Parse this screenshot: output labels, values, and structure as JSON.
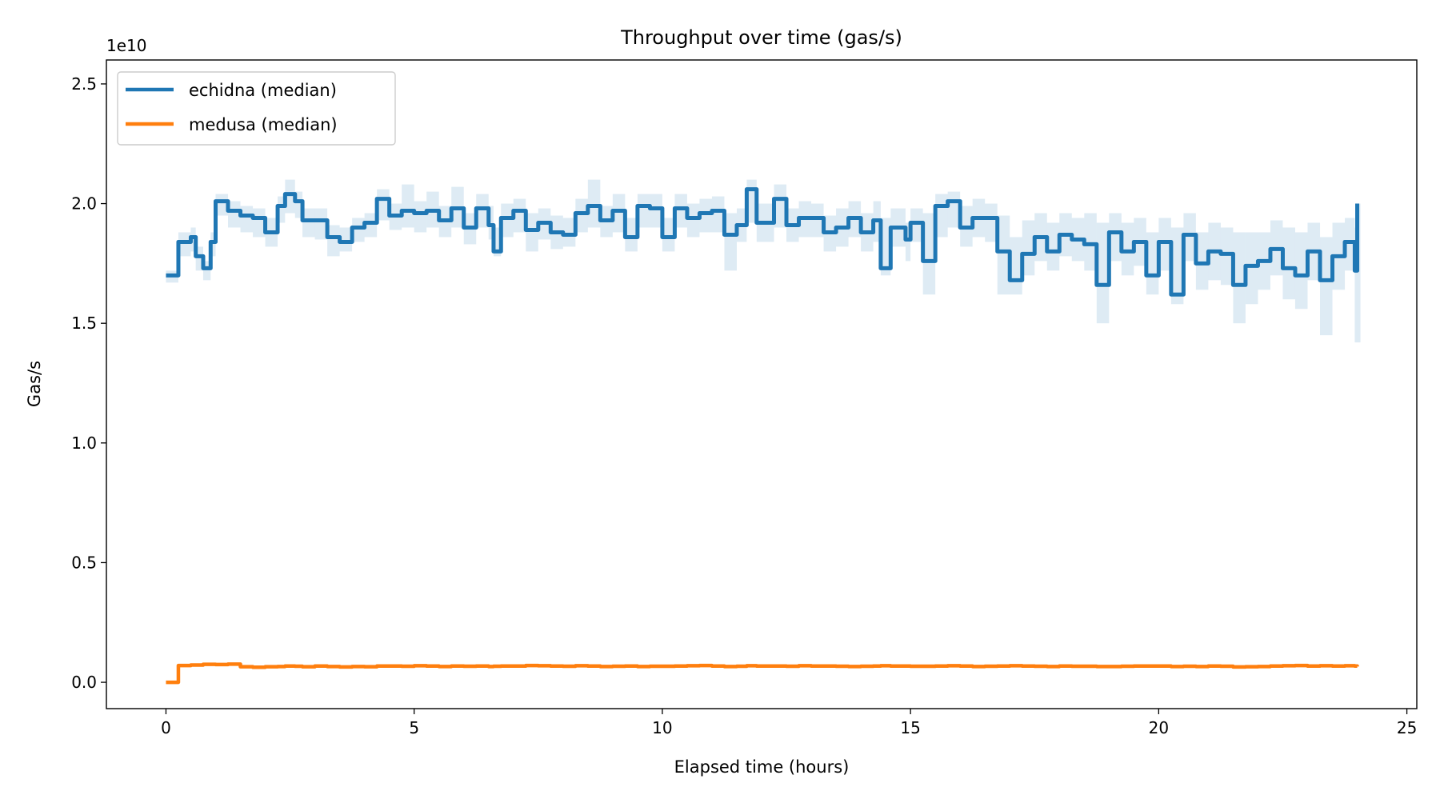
{
  "chart_data": {
    "type": "line",
    "title": "Throughput over time (gas/s)",
    "xlabel": "Elapsed time (hours)",
    "ylabel": "Gas/s",
    "y_offset_label": "1e10",
    "xlim": [
      -1.2,
      25.2
    ],
    "ylim": [
      -0.11,
      2.6
    ],
    "xticks": [
      0,
      5,
      10,
      15,
      20,
      25
    ],
    "xtick_labels": [
      "0",
      "5",
      "10",
      "15",
      "20",
      "25"
    ],
    "yticks": [
      0.0,
      0.5,
      1.0,
      1.5,
      2.0,
      2.5
    ],
    "ytick_labels": [
      "0.0",
      "0.5",
      "1.0",
      "1.5",
      "2.0",
      "2.5"
    ],
    "grid": false,
    "legend_position": "top-left",
    "x": [
      0,
      0.25,
      0.5,
      0.6,
      0.75,
      0.9,
      1.0,
      1.25,
      1.5,
      1.75,
      2.0,
      2.25,
      2.4,
      2.6,
      2.75,
      3.0,
      3.25,
      3.5,
      3.75,
      4.0,
      4.25,
      4.5,
      4.75,
      5.0,
      5.25,
      5.5,
      5.75,
      6.0,
      6.25,
      6.5,
      6.6,
      6.75,
      7.0,
      7.25,
      7.5,
      7.75,
      8.0,
      8.25,
      8.5,
      8.75,
      9.0,
      9.25,
      9.5,
      9.75,
      10.0,
      10.25,
      10.5,
      10.75,
      11.0,
      11.25,
      11.5,
      11.7,
      11.9,
      12.25,
      12.5,
      12.75,
      13.0,
      13.25,
      13.5,
      13.75,
      14.0,
      14.25,
      14.4,
      14.6,
      14.9,
      15.0,
      15.25,
      15.5,
      15.75,
      16.0,
      16.25,
      16.5,
      16.75,
      17.0,
      17.25,
      17.5,
      17.75,
      18.0,
      18.25,
      18.5,
      18.75,
      19.0,
      19.25,
      19.5,
      19.75,
      20.0,
      20.25,
      20.5,
      20.75,
      21.0,
      21.25,
      21.5,
      21.75,
      22.0,
      22.25,
      22.5,
      22.75,
      23.0,
      23.25,
      23.5,
      23.75,
      23.95,
      24.0
    ],
    "series": [
      {
        "name": "echidna (median)",
        "color": "#1f77b4",
        "values": [
          1.7,
          1.84,
          1.86,
          1.78,
          1.73,
          1.84,
          2.01,
          1.97,
          1.95,
          1.94,
          1.88,
          1.99,
          2.04,
          2.01,
          1.93,
          1.93,
          1.86,
          1.84,
          1.9,
          1.92,
          2.02,
          1.95,
          1.97,
          1.96,
          1.97,
          1.93,
          1.98,
          1.9,
          1.98,
          1.91,
          1.8,
          1.94,
          1.97,
          1.89,
          1.92,
          1.88,
          1.87,
          1.96,
          1.99,
          1.93,
          1.97,
          1.86,
          1.99,
          1.98,
          1.86,
          1.98,
          1.94,
          1.96,
          1.97,
          1.87,
          1.91,
          2.06,
          1.92,
          2.02,
          1.91,
          1.94,
          1.94,
          1.88,
          1.9,
          1.94,
          1.88,
          1.93,
          1.73,
          1.9,
          1.85,
          1.92,
          1.76,
          1.99,
          2.01,
          1.9,
          1.94,
          1.94,
          1.8,
          1.68,
          1.79,
          1.86,
          1.8,
          1.87,
          1.85,
          1.83,
          1.66,
          1.88,
          1.8,
          1.84,
          1.7,
          1.84,
          1.62,
          1.87,
          1.75,
          1.8,
          1.79,
          1.66,
          1.74,
          1.76,
          1.81,
          1.73,
          1.7,
          1.8,
          1.68,
          1.78,
          1.84,
          1.72,
          2.0
        ],
        "band_lower": [
          1.67,
          1.78,
          1.8,
          1.72,
          1.68,
          1.78,
          1.95,
          1.9,
          1.88,
          1.86,
          1.82,
          1.92,
          1.96,
          1.94,
          1.86,
          1.85,
          1.78,
          1.8,
          1.84,
          1.86,
          1.93,
          1.89,
          1.9,
          1.88,
          1.9,
          1.86,
          1.9,
          1.83,
          1.9,
          1.85,
          1.78,
          1.86,
          1.88,
          1.8,
          1.85,
          1.81,
          1.82,
          1.88,
          1.9,
          1.86,
          1.88,
          1.8,
          1.9,
          1.9,
          1.8,
          1.9,
          1.86,
          1.88,
          1.88,
          1.72,
          1.84,
          1.92,
          1.84,
          1.9,
          1.84,
          1.86,
          1.86,
          1.8,
          1.82,
          1.86,
          1.8,
          1.84,
          1.7,
          1.82,
          1.76,
          1.84,
          1.62,
          1.86,
          1.9,
          1.82,
          1.86,
          1.84,
          1.62,
          1.62,
          1.7,
          1.76,
          1.72,
          1.78,
          1.76,
          1.72,
          1.5,
          1.76,
          1.7,
          1.74,
          1.62,
          1.72,
          1.58,
          1.76,
          1.64,
          1.68,
          1.66,
          1.5,
          1.58,
          1.64,
          1.7,
          1.6,
          1.56,
          1.68,
          1.45,
          1.64,
          1.72,
          1.42,
          1.42
        ],
        "band_upper": [
          1.72,
          1.88,
          1.9,
          1.82,
          1.76,
          1.88,
          2.04,
          2.01,
          1.99,
          1.98,
          1.94,
          2.03,
          2.1,
          2.05,
          1.98,
          1.98,
          1.91,
          1.9,
          1.94,
          1.96,
          2.06,
          2.0,
          2.08,
          2.01,
          2.05,
          1.99,
          2.07,
          1.96,
          2.04,
          1.99,
          1.9,
          2.0,
          2.02,
          1.96,
          1.98,
          1.95,
          1.94,
          2.02,
          2.1,
          1.99,
          2.04,
          1.94,
          2.04,
          2.04,
          1.94,
          2.04,
          2.0,
          2.02,
          2.03,
          1.96,
          1.98,
          2.1,
          2.0,
          2.08,
          1.98,
          2.01,
          2.0,
          1.95,
          1.98,
          2.01,
          1.96,
          2.01,
          1.94,
          1.98,
          1.92,
          1.98,
          1.96,
          2.04,
          2.05,
          1.99,
          2.02,
          2.0,
          1.95,
          1.86,
          1.93,
          1.96,
          1.92,
          1.96,
          1.94,
          1.96,
          1.92,
          1.96,
          1.92,
          1.94,
          1.88,
          1.94,
          1.9,
          1.96,
          1.88,
          1.92,
          1.9,
          1.88,
          1.88,
          1.88,
          1.93,
          1.9,
          1.88,
          1.92,
          1.86,
          1.92,
          1.94,
          1.9,
          2.0
        ]
      },
      {
        "name": "medusa (median)",
        "color": "#ff7f0e",
        "values": [
          0.0,
          0.07,
          0.072,
          0.072,
          0.075,
          0.075,
          0.074,
          0.076,
          0.065,
          0.063,
          0.065,
          0.066,
          0.068,
          0.067,
          0.065,
          0.068,
          0.066,
          0.064,
          0.066,
          0.065,
          0.068,
          0.068,
          0.067,
          0.069,
          0.068,
          0.066,
          0.068,
          0.067,
          0.068,
          0.066,
          0.067,
          0.068,
          0.068,
          0.07,
          0.069,
          0.068,
          0.067,
          0.069,
          0.068,
          0.066,
          0.067,
          0.068,
          0.066,
          0.067,
          0.067,
          0.068,
          0.069,
          0.07,
          0.068,
          0.066,
          0.067,
          0.069,
          0.068,
          0.068,
          0.067,
          0.069,
          0.068,
          0.068,
          0.067,
          0.066,
          0.067,
          0.068,
          0.069,
          0.068,
          0.068,
          0.067,
          0.067,
          0.068,
          0.069,
          0.068,
          0.066,
          0.067,
          0.068,
          0.069,
          0.068,
          0.067,
          0.066,
          0.068,
          0.067,
          0.067,
          0.066,
          0.066,
          0.067,
          0.068,
          0.068,
          0.068,
          0.066,
          0.067,
          0.066,
          0.068,
          0.067,
          0.064,
          0.065,
          0.066,
          0.068,
          0.069,
          0.07,
          0.068,
          0.069,
          0.068,
          0.069,
          0.068,
          0.066
        ]
      }
    ]
  }
}
